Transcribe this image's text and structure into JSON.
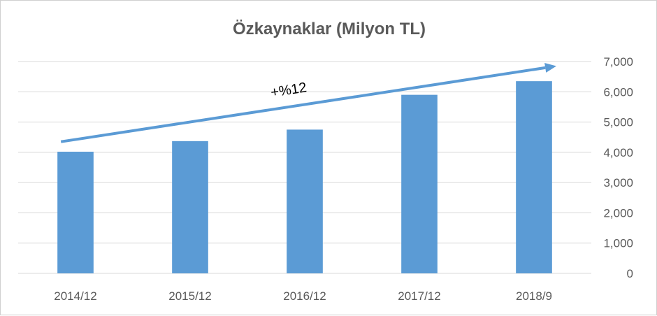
{
  "chart_data": {
    "type": "bar",
    "title": "Özkaynaklar (Milyon TL)",
    "categories": [
      "2014/12",
      "2015/12",
      "2016/12",
      "2017/12",
      "2018/9"
    ],
    "values": [
      4020,
      4370,
      4750,
      5900,
      6350
    ],
    "ylim": [
      0,
      7000
    ],
    "yticks": [
      0,
      1000,
      2000,
      3000,
      4000,
      5000,
      6000,
      7000
    ],
    "ytick_labels": [
      "0",
      "1,000",
      "2,000",
      "3,000",
      "4,000",
      "5,000",
      "6,000",
      "7,000"
    ],
    "y_axis_side": "right",
    "grid": true,
    "legend": "none",
    "annotation": {
      "text": "+%12",
      "trend_arrow_from_value": 4350,
      "trend_arrow_to_value": 6850
    },
    "colors": {
      "bar": "#5B9BD5",
      "arrow": "#5B9BD5",
      "grid": "#D9D9D9",
      "text": "#595959"
    }
  }
}
